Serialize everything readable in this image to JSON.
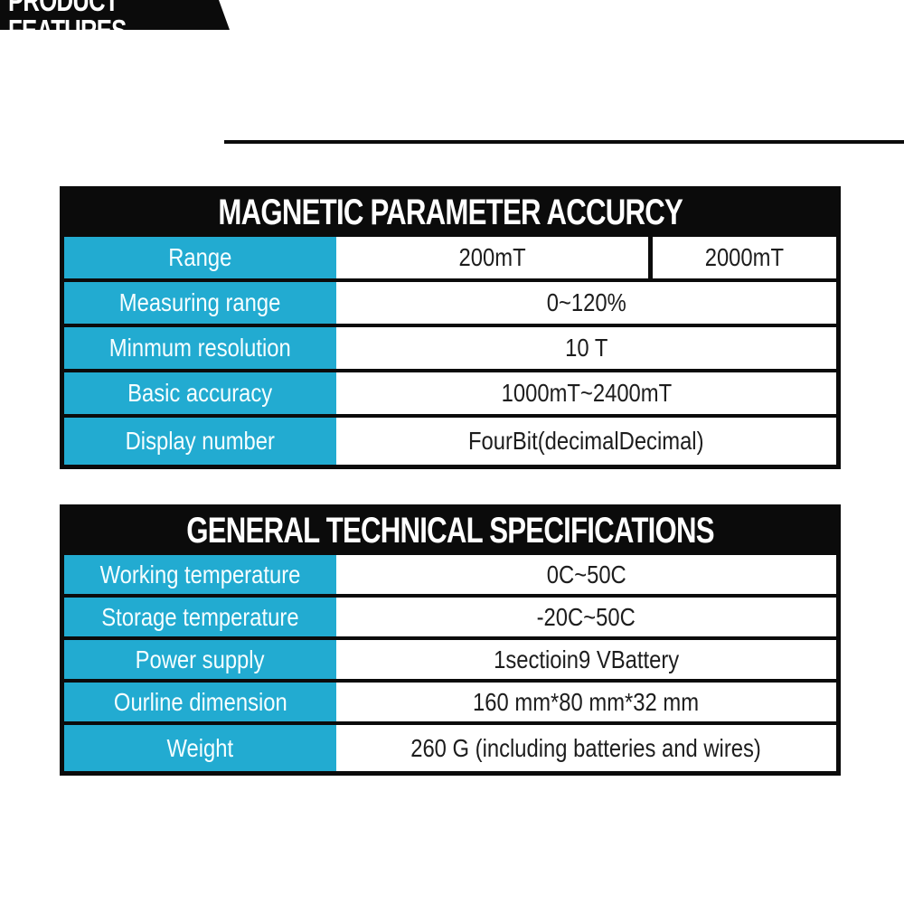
{
  "header": {
    "label": "PRODUCT FEATURES"
  },
  "colors": {
    "accent_cyan": "#22abd1",
    "table_black": "#0b0b0b",
    "value_text": "#1d1d1d"
  },
  "tables": [
    {
      "title": "MAGNETIC PARAMETER ACCURCY",
      "rows": [
        {
          "label": "Range",
          "values": [
            "200mT",
            "2000mT"
          ]
        },
        {
          "label": "Measuring range",
          "values": [
            "0~120%"
          ]
        },
        {
          "label": "Minmum resolution",
          "values": [
            "10 T"
          ]
        },
        {
          "label": "Basic accuracy",
          "values": [
            "1000mT~2400mT"
          ]
        },
        {
          "label": "Display number",
          "values": [
            "FourBit(decimalDecimal)"
          ]
        }
      ]
    },
    {
      "title": "GENERAL TECHNICAL SPECIFICATIONS",
      "rows": [
        {
          "label": "Working temperature",
          "values": [
            "0C~50C"
          ]
        },
        {
          "label": "Storage temperature",
          "values": [
            "-20C~50C"
          ]
        },
        {
          "label": "Power supply",
          "values": [
            "1sectioin9 VBattery"
          ]
        },
        {
          "label": "Ourline dimension",
          "values": [
            "160 mm*80 mm*32 mm"
          ]
        },
        {
          "label": "Weight",
          "values": [
            "260 G (including batteries and wires)"
          ]
        }
      ]
    }
  ]
}
